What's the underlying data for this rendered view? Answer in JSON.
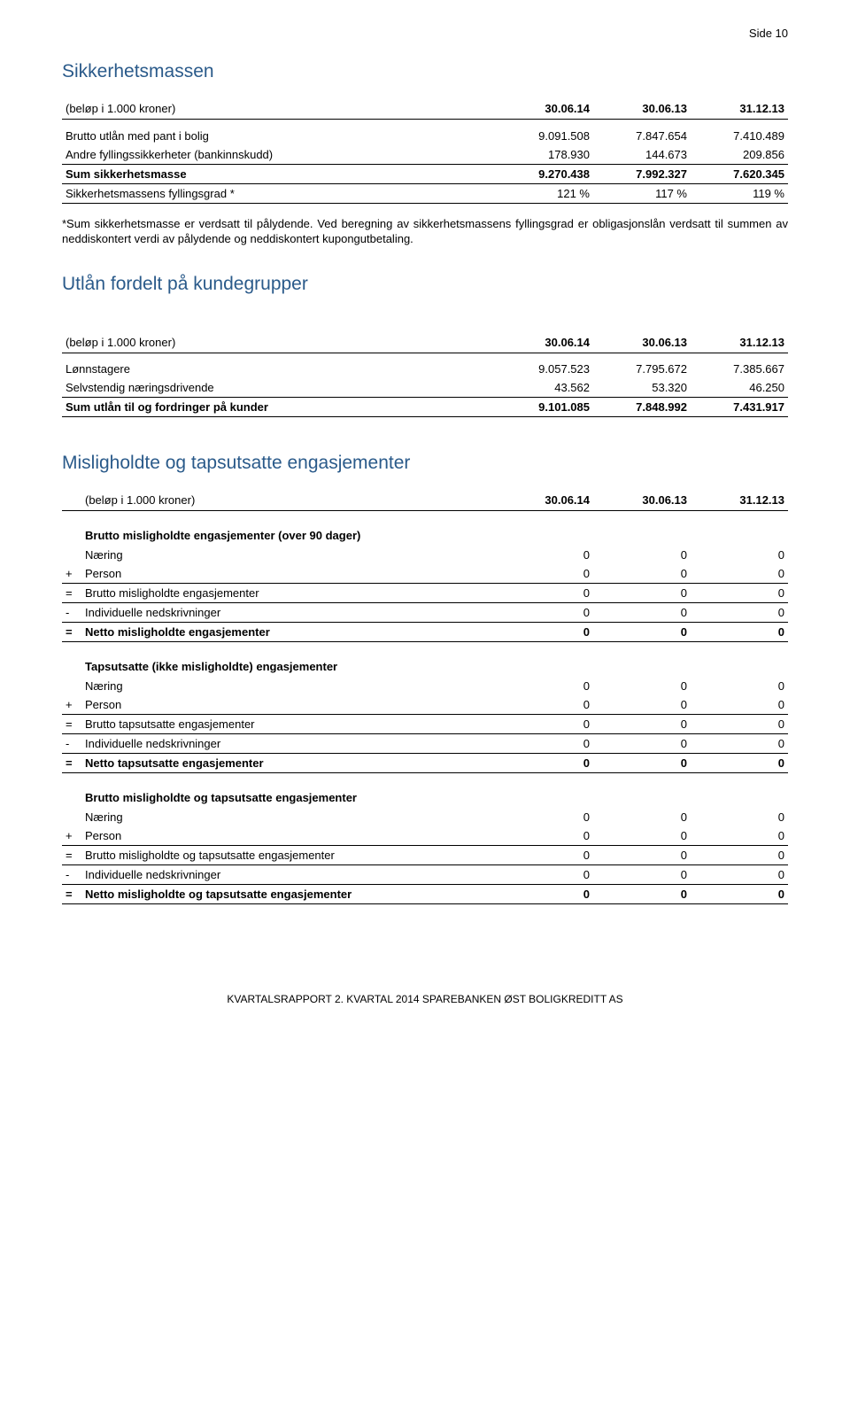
{
  "page_header": "Side 10",
  "sikkerhetsmassen": {
    "title": "Sikkerhetsmassen",
    "unit_label": "(beløp i 1.000 kroner)",
    "col_headers": [
      "30.06.14",
      "30.06.13",
      "31.12.13"
    ],
    "rows": [
      {
        "label": "Brutto utlån med pant i bolig",
        "values": [
          "9.091.508",
          "7.847.654",
          "7.410.489"
        ]
      },
      {
        "label": "Andre fyllingssikkerheter (bankinnskudd)",
        "values": [
          "178.930",
          "144.673",
          "209.856"
        ]
      }
    ],
    "sum_row": {
      "label": "Sum sikkerhetsmasse",
      "values": [
        "9.270.438",
        "7.992.327",
        "7.620.345"
      ]
    },
    "extra_row": {
      "label": "Sikkerhetsmassens fyllingsgrad *",
      "values": [
        "121 %",
        "117 %",
        "119 %"
      ]
    },
    "note": "*Sum sikkerhetsmasse er verdsatt til pålydende. Ved beregning av sikkerhetsmassens fyllingsgrad er obligasjonslån verdsatt til summen av neddiskontert verdi av pålydende og neddiskontert kupongutbetaling."
  },
  "utlan": {
    "title": "Utlån fordelt på kundegrupper",
    "unit_label": "(beløp i 1.000 kroner)",
    "col_headers": [
      "30.06.14",
      "30.06.13",
      "31.12.13"
    ],
    "rows": [
      {
        "label": "Lønnstagere",
        "values": [
          "9.057.523",
          "7.795.672",
          "7.385.667"
        ]
      },
      {
        "label": "Selvstendig næringsdrivende",
        "values": [
          "43.562",
          "53.320",
          "46.250"
        ]
      }
    ],
    "sum_row": {
      "label": "Sum utlån til og fordringer på kunder",
      "values": [
        "9.101.085",
        "7.848.992",
        "7.431.917"
      ]
    }
  },
  "misligholdte": {
    "title": "Misligholdte og tapsutsatte engasjementer",
    "unit_label": "(beløp i 1.000 kroner)",
    "col_headers": [
      "30.06.14",
      "30.06.13",
      "31.12.13"
    ],
    "groups": [
      {
        "title": "Brutto misligholdte engasjementer (over 90 dager)",
        "rows": [
          {
            "op": "",
            "label": "Næring",
            "values": [
              "0",
              "0",
              "0"
            ]
          },
          {
            "op": "+",
            "label": "Person",
            "values": [
              "0",
              "0",
              "0"
            ]
          },
          {
            "op": "=",
            "label": "Brutto misligholdte engasjementer",
            "values": [
              "0",
              "0",
              "0"
            ],
            "border": true
          },
          {
            "op": "-",
            "label": "Individuelle nedskrivninger",
            "values": [
              "0",
              "0",
              "0"
            ]
          },
          {
            "op": "=",
            "label": "Netto misligholdte engasjementer",
            "values": [
              "0",
              "0",
              "0"
            ],
            "bold": true,
            "border": true
          }
        ]
      },
      {
        "title": "Tapsutsatte (ikke misligholdte) engasjementer",
        "rows": [
          {
            "op": "",
            "label": "Næring",
            "values": [
              "0",
              "0",
              "0"
            ]
          },
          {
            "op": "+",
            "label": "Person",
            "values": [
              "0",
              "0",
              "0"
            ]
          },
          {
            "op": "=",
            "label": "Brutto tapsutsatte engasjementer",
            "values": [
              "0",
              "0",
              "0"
            ],
            "border": true
          },
          {
            "op": "-",
            "label": "Individuelle nedskrivninger",
            "values": [
              "0",
              "0",
              "0"
            ]
          },
          {
            "op": "=",
            "label": "Netto tapsutsatte engasjementer",
            "values": [
              "0",
              "0",
              "0"
            ],
            "bold": true,
            "border": true
          }
        ]
      },
      {
        "title": "Brutto misligholdte og tapsutsatte engasjementer",
        "rows": [
          {
            "op": "",
            "label": "Næring",
            "values": [
              "0",
              "0",
              "0"
            ]
          },
          {
            "op": "+",
            "label": "Person",
            "values": [
              "0",
              "0",
              "0"
            ]
          },
          {
            "op": "=",
            "label": "Brutto misligholdte og tapsutsatte engasjementer",
            "values": [
              "0",
              "0",
              "0"
            ],
            "border": true
          },
          {
            "op": "-",
            "label": "Individuelle nedskrivninger",
            "values": [
              "0",
              "0",
              "0"
            ]
          },
          {
            "op": "=",
            "label": "Netto misligholdte og tapsutsatte engasjementer",
            "values": [
              "0",
              "0",
              "0"
            ],
            "bold": true,
            "border": true
          }
        ]
      }
    ]
  },
  "footer": "KVARTALSRAPPORT 2. KVARTAL 2014 SPAREBANKEN ØST BOLIGKREDITT AS"
}
